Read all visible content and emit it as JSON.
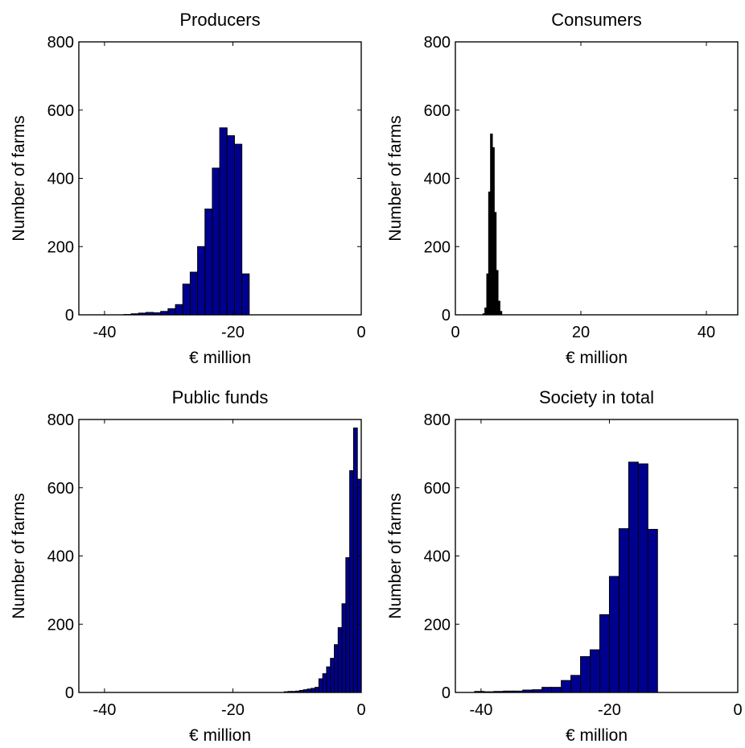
{
  "chart_data": [
    {
      "type": "bar",
      "title": "Producers",
      "xlabel": "€ million",
      "ylabel": "Number of farms",
      "xlim": [
        -44,
        0
      ],
      "ylim": [
        0,
        800
      ],
      "xticks": [
        -40,
        -20,
        0
      ],
      "yticks": [
        0,
        200,
        400,
        600,
        800
      ],
      "grid": false,
      "bar_color": "#00008F",
      "bin_width": 1.15,
      "bins": [
        {
          "x": -37.0,
          "y": 1
        },
        {
          "x": -35.85,
          "y": 3
        },
        {
          "x": -34.7,
          "y": 5
        },
        {
          "x": -33.55,
          "y": 7
        },
        {
          "x": -32.4,
          "y": 6
        },
        {
          "x": -31.25,
          "y": 10
        },
        {
          "x": -30.1,
          "y": 18
        },
        {
          "x": -28.95,
          "y": 30
        },
        {
          "x": -27.8,
          "y": 90
        },
        {
          "x": -26.65,
          "y": 125
        },
        {
          "x": -25.5,
          "y": 200
        },
        {
          "x": -24.35,
          "y": 310
        },
        {
          "x": -23.2,
          "y": 430
        },
        {
          "x": -22.05,
          "y": 548
        },
        {
          "x": -20.9,
          "y": 525
        },
        {
          "x": -19.75,
          "y": 500
        },
        {
          "x": -18.6,
          "y": 120
        }
      ]
    },
    {
      "type": "bar",
      "title": "Consumers",
      "xlabel": "€ million",
      "ylabel": "Number of farms",
      "xlim": [
        0,
        45
      ],
      "ylim": [
        0,
        800
      ],
      "xticks": [
        0,
        20,
        40
      ],
      "yticks": [
        0,
        200,
        400,
        600,
        800
      ],
      "grid": false,
      "bar_color": "#000000",
      "bin_width": 0.3,
      "bins": [
        {
          "x": 4.4,
          "y": 3
        },
        {
          "x": 4.7,
          "y": 20
        },
        {
          "x": 5.0,
          "y": 120
        },
        {
          "x": 5.3,
          "y": 360
        },
        {
          "x": 5.6,
          "y": 530
        },
        {
          "x": 5.9,
          "y": 490
        },
        {
          "x": 6.2,
          "y": 300
        },
        {
          "x": 6.5,
          "y": 130
        },
        {
          "x": 6.8,
          "y": 40
        },
        {
          "x": 7.1,
          "y": 10
        }
      ]
    },
    {
      "type": "bar",
      "title": "Public funds",
      "xlabel": "€ million",
      "ylabel": "Number of farms",
      "xlim": [
        -44,
        0
      ],
      "ylim": [
        0,
        800
      ],
      "xticks": [
        -40,
        -20,
        0
      ],
      "yticks": [
        0,
        200,
        400,
        600,
        800
      ],
      "grid": false,
      "bar_color": "#00008F",
      "bin_width": 0.6,
      "bins": [
        {
          "x": -12.0,
          "y": 2
        },
        {
          "x": -11.4,
          "y": 3
        },
        {
          "x": -10.8,
          "y": 3
        },
        {
          "x": -10.2,
          "y": 4
        },
        {
          "x": -9.6,
          "y": 6
        },
        {
          "x": -9.0,
          "y": 8
        },
        {
          "x": -8.4,
          "y": 10
        },
        {
          "x": -7.8,
          "y": 12
        },
        {
          "x": -7.2,
          "y": 15
        },
        {
          "x": -6.6,
          "y": 40
        },
        {
          "x": -6.0,
          "y": 55
        },
        {
          "x": -5.4,
          "y": 75
        },
        {
          "x": -4.8,
          "y": 100
        },
        {
          "x": -4.2,
          "y": 140
        },
        {
          "x": -3.6,
          "y": 190
        },
        {
          "x": -3.0,
          "y": 260
        },
        {
          "x": -2.4,
          "y": 395
        },
        {
          "x": -1.8,
          "y": 650
        },
        {
          "x": -1.2,
          "y": 775
        },
        {
          "x": -0.6,
          "y": 625
        }
      ]
    },
    {
      "type": "bar",
      "title": "Society in total",
      "xlabel": "€ million",
      "ylabel": "Number of farms",
      "xlim": [
        -44,
        0
      ],
      "ylim": [
        0,
        800
      ],
      "xticks": [
        -40,
        -20,
        0
      ],
      "yticks": [
        0,
        200,
        400,
        600,
        800
      ],
      "grid": false,
      "bar_color": "#00008F",
      "bin_width": 1.5,
      "bins": [
        {
          "x": -41.0,
          "y": 3
        },
        {
          "x": -39.5,
          "y": 2
        },
        {
          "x": -38.0,
          "y": 3
        },
        {
          "x": -36.5,
          "y": 4
        },
        {
          "x": -35.0,
          "y": 4
        },
        {
          "x": -33.5,
          "y": 7
        },
        {
          "x": -32.0,
          "y": 8
        },
        {
          "x": -30.5,
          "y": 15
        },
        {
          "x": -29.0,
          "y": 15
        },
        {
          "x": -27.5,
          "y": 35
        },
        {
          "x": -26.0,
          "y": 50
        },
        {
          "x": -24.5,
          "y": 105
        },
        {
          "x": -23.0,
          "y": 125
        },
        {
          "x": -21.5,
          "y": 228
        },
        {
          "x": -20.0,
          "y": 340
        },
        {
          "x": -18.5,
          "y": 480
        },
        {
          "x": -17.0,
          "y": 675
        },
        {
          "x": -15.5,
          "y": 670
        },
        {
          "x": -14.0,
          "y": 478
        }
      ]
    }
  ]
}
